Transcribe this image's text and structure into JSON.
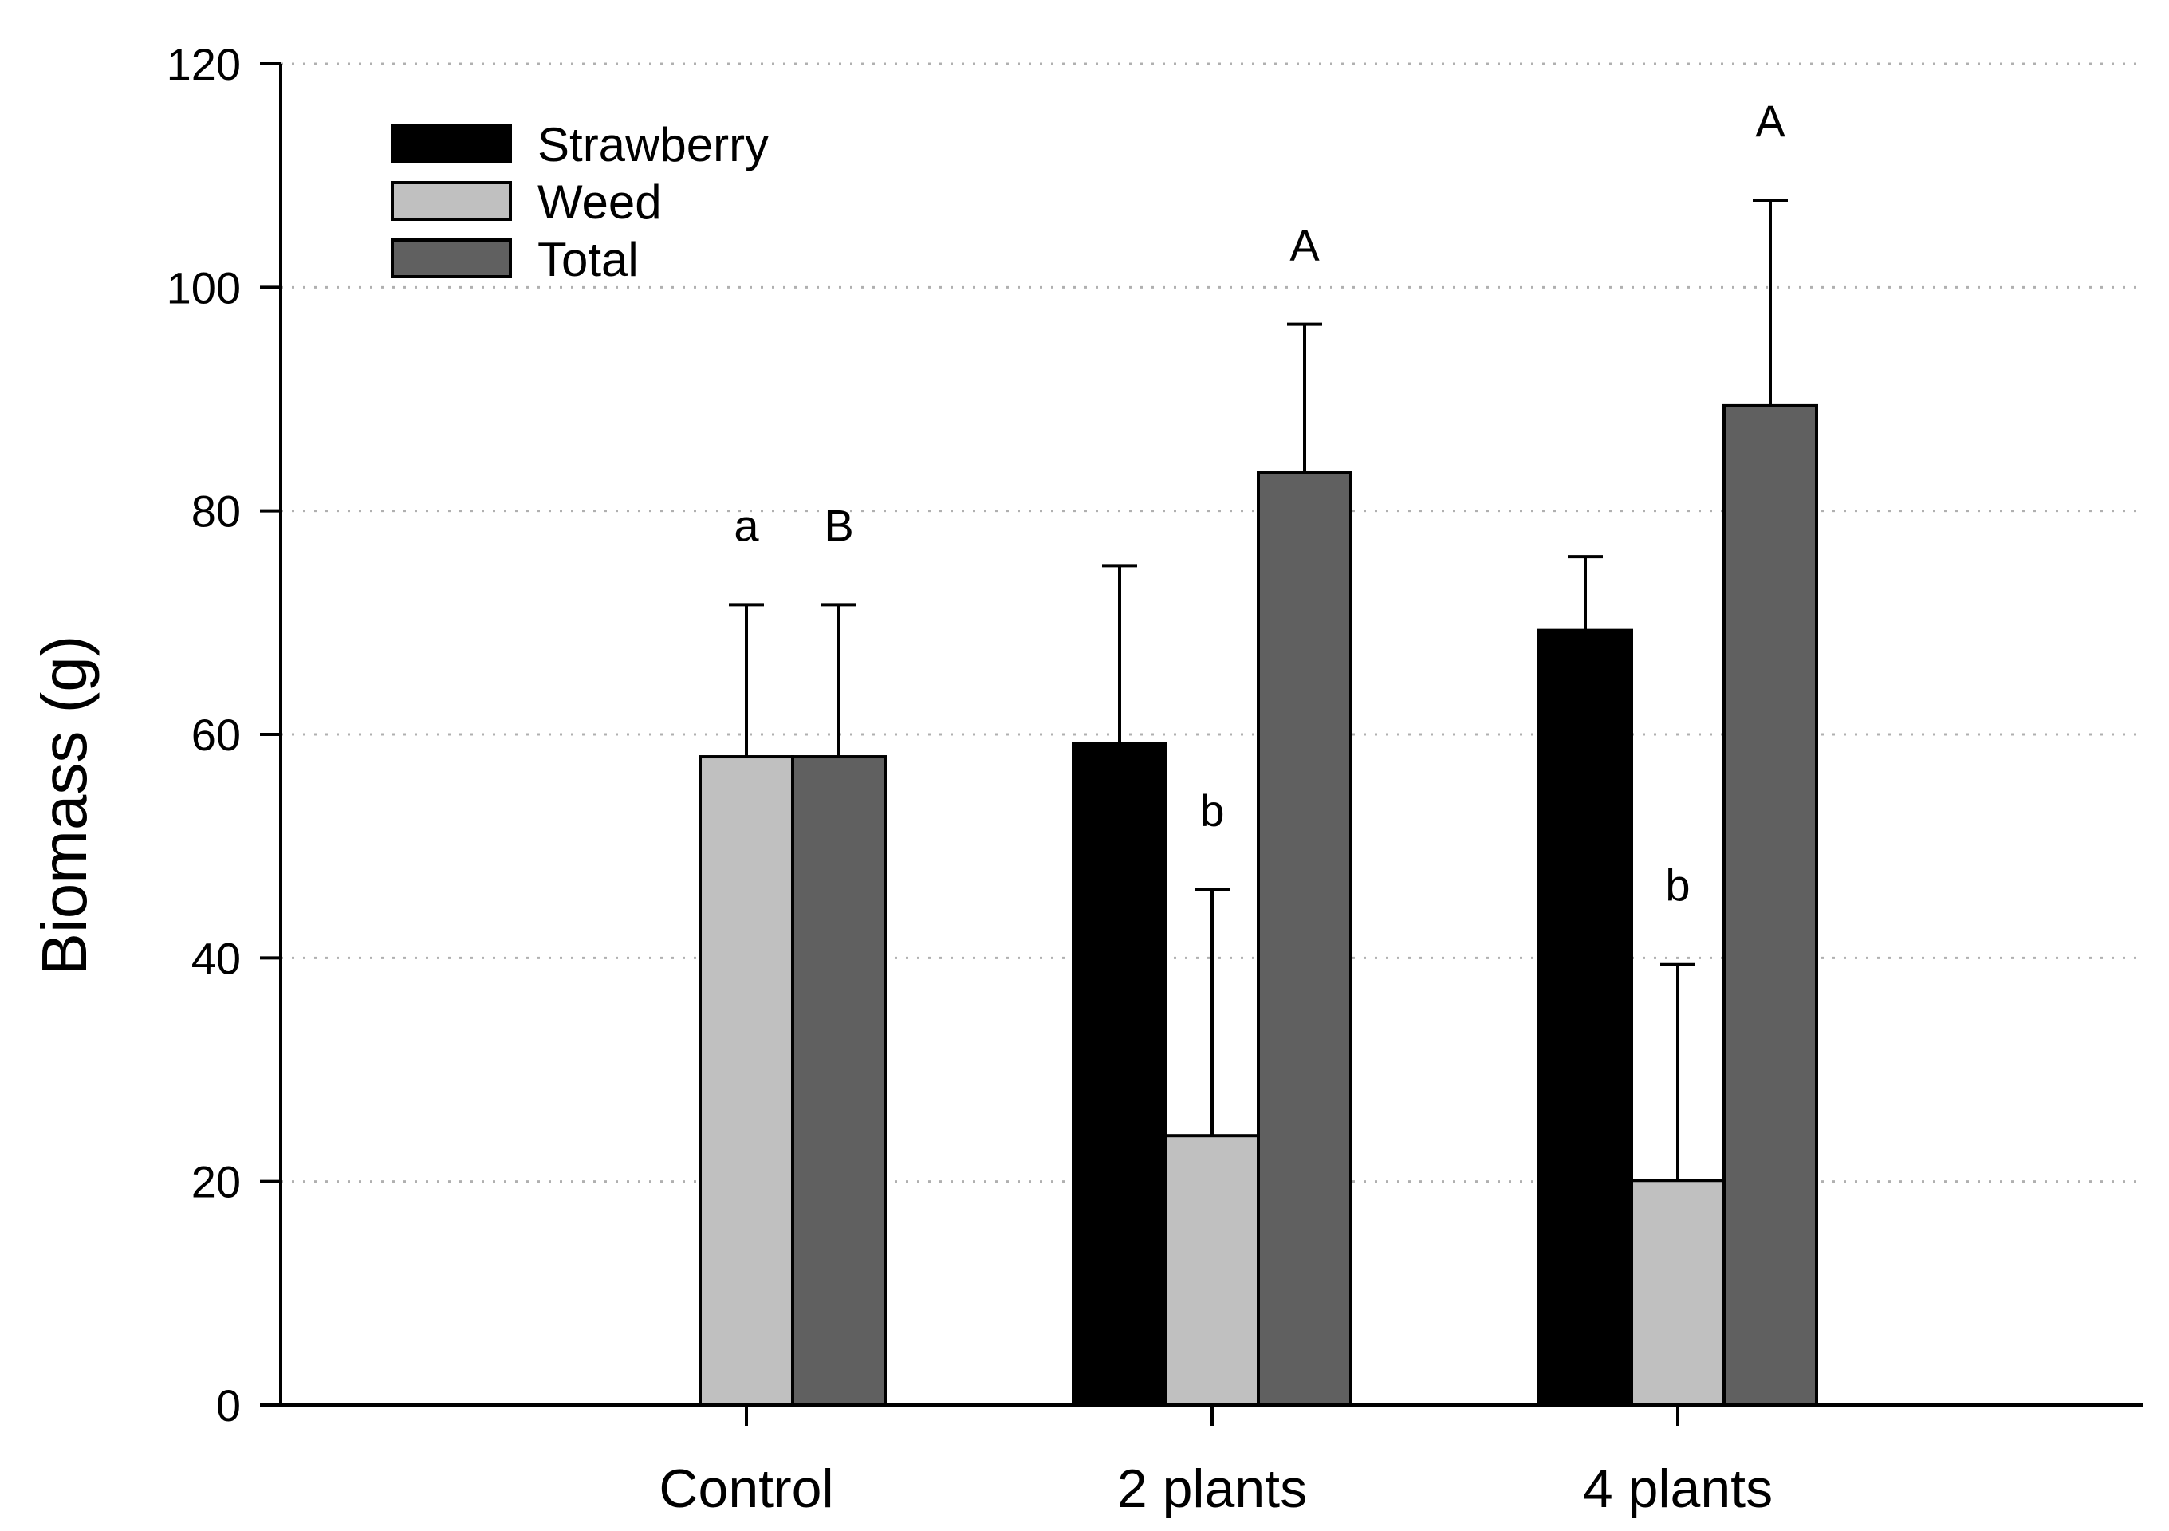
{
  "chart_data": {
    "type": "bar",
    "title": "",
    "xlabel": "",
    "ylabel": "Biomass (g)",
    "ylim": [
      0,
      120
    ],
    "yticks": [
      0,
      20,
      40,
      60,
      80,
      100,
      120
    ],
    "grid": "horizontal dotted",
    "legend_position": "top-left",
    "categories": [
      "Control",
      "2 plants",
      "4 plants"
    ],
    "series": [
      {
        "name": "Strawberry",
        "color": "#000000",
        "values": [
          null,
          59.2,
          69.3
        ],
        "errors": [
          null,
          15.9,
          6.6
        ],
        "labels": [
          "",
          "",
          ""
        ]
      },
      {
        "name": "Weed",
        "color": "#c0c0c0",
        "values": [
          58.0,
          24.1,
          20.1
        ],
        "errors": [
          13.6,
          22.0,
          19.3
        ],
        "labels": [
          "a",
          "b",
          "b"
        ]
      },
      {
        "name": "Total",
        "color": "#606060",
        "values": [
          58.0,
          83.4,
          89.4
        ],
        "errors": [
          13.6,
          13.3,
          18.4
        ],
        "labels": [
          "B",
          "A",
          "A"
        ]
      }
    ]
  }
}
